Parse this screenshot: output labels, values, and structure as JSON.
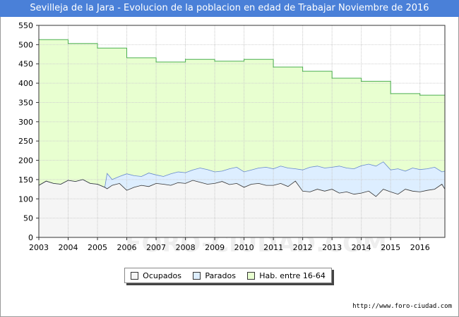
{
  "title": "Sevilleja de la Jara - Evolucion de la poblacion en edad de Trabajar Noviembre de 2016",
  "footer": "http://www.foro-ciudad.com",
  "watermark": "FORO-CIUDAD.COM",
  "colors": {
    "title_bg": "#4a80d8",
    "habitantes": "#e8ffd0",
    "habitantes_line": "#4caf50",
    "parados": "#ddeeff",
    "parados_line": "#6688cc",
    "ocupados": "#f5f5f5",
    "ocupados_line": "#333333"
  },
  "chart_data": {
    "type": "area",
    "ylim": [
      0,
      550
    ],
    "yticks": [
      0,
      50,
      100,
      150,
      200,
      250,
      300,
      350,
      400,
      450,
      500,
      550
    ],
    "xlim": [
      2003,
      2016.85
    ],
    "xticks": [
      "2003",
      "2004",
      "2005",
      "2006",
      "2007",
      "2008",
      "2009",
      "2010",
      "2011",
      "2012",
      "2013",
      "2014",
      "2015",
      "2016"
    ],
    "grid": true,
    "legend_placement": "bottom-center",
    "series": [
      {
        "name": "Hab. entre 16-64",
        "step": true,
        "x": [
          2003,
          2004,
          2005,
          2006,
          2007,
          2008,
          2009,
          2010,
          2011,
          2012,
          2013,
          2014,
          2015,
          2016,
          2016.85
        ],
        "values": [
          513,
          503,
          491,
          466,
          455,
          462,
          457,
          462,
          442,
          431,
          413,
          405,
          373,
          369,
          369
        ]
      },
      {
        "name": "Parados",
        "x": [
          2003,
          2003.25,
          2003.5,
          2003.75,
          2004,
          2004.25,
          2004.5,
          2004.75,
          2005,
          2005.25,
          2005.33,
          2005.5,
          2005.75,
          2006,
          2006.25,
          2006.5,
          2006.75,
          2007,
          2007.25,
          2007.5,
          2007.75,
          2008,
          2008.25,
          2008.5,
          2008.75,
          2009,
          2009.25,
          2009.5,
          2009.75,
          2010,
          2010.25,
          2010.5,
          2010.75,
          2011,
          2011.25,
          2011.5,
          2011.75,
          2012,
          2012.25,
          2012.5,
          2012.75,
          2013,
          2013.25,
          2013.5,
          2013.75,
          2014,
          2014.25,
          2014.5,
          2014.75,
          2015,
          2015.25,
          2015.5,
          2015.75,
          2016,
          2016.25,
          2016.5,
          2016.75,
          2016.85
        ],
        "values": [
          135,
          146,
          140,
          138,
          148,
          145,
          150,
          140,
          138,
          130,
          166,
          150,
          158,
          165,
          160,
          158,
          167,
          162,
          158,
          165,
          170,
          168,
          175,
          180,
          176,
          170,
          172,
          178,
          182,
          170,
          175,
          180,
          182,
          178,
          185,
          180,
          178,
          175,
          182,
          185,
          180,
          182,
          185,
          180,
          178,
          186,
          190,
          185,
          196,
          175,
          178,
          172,
          180,
          176,
          178,
          182,
          170,
          172
        ]
      },
      {
        "name": "Ocupados",
        "x": [
          2003,
          2003.25,
          2003.5,
          2003.75,
          2004,
          2004.25,
          2004.5,
          2004.75,
          2005,
          2005.25,
          2005.33,
          2005.5,
          2005.75,
          2006,
          2006.25,
          2006.5,
          2006.75,
          2007,
          2007.25,
          2007.5,
          2007.75,
          2008,
          2008.25,
          2008.5,
          2008.75,
          2009,
          2009.25,
          2009.5,
          2009.75,
          2010,
          2010.25,
          2010.5,
          2010.75,
          2011,
          2011.25,
          2011.5,
          2011.75,
          2012,
          2012.25,
          2012.5,
          2012.75,
          2013,
          2013.25,
          2013.5,
          2013.75,
          2014,
          2014.25,
          2014.5,
          2014.75,
          2015,
          2015.25,
          2015.5,
          2015.75,
          2016,
          2016.25,
          2016.5,
          2016.75,
          2016.85
        ],
        "values": [
          135,
          146,
          140,
          138,
          148,
          145,
          150,
          140,
          138,
          130,
          126,
          135,
          140,
          122,
          130,
          135,
          132,
          140,
          138,
          135,
          142,
          140,
          148,
          143,
          138,
          140,
          145,
          137,
          140,
          130,
          138,
          140,
          135,
          135,
          140,
          132,
          146,
          120,
          118,
          125,
          120,
          125,
          115,
          118,
          112,
          115,
          120,
          106,
          125,
          118,
          112,
          125,
          120,
          118,
          122,
          125,
          138,
          125
        ]
      }
    ]
  }
}
